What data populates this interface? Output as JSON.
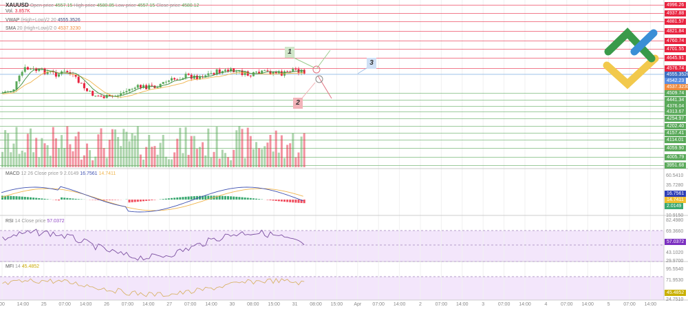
{
  "symbol": "XAUUSD",
  "ohlc": {
    "open_label": "Open price",
    "open": "4557.15",
    "high_label": "High price",
    "high": "4580.85",
    "low_label": "Low price",
    "low": "4557.15",
    "close_label": "Close price",
    "close": "4580.12"
  },
  "volume": {
    "label": "Vol.",
    "value": "3.857K"
  },
  "vwap": {
    "label": "VWAP",
    "params": "(High+Low)/2 20",
    "value": "4555.3526"
  },
  "sma": {
    "label": "SMA",
    "params": "20 (High+Low)/2 0",
    "value": "4537.3230"
  },
  "macd": {
    "label": "MACD",
    "params": "12 26 Close price 9",
    "hist": "2.0149",
    "macd": "16.7561",
    "signal": "14.7411",
    "axis": [
      "60.5410",
      "35.7280",
      "10.9150"
    ]
  },
  "rsi": {
    "label": "RSI",
    "params": "14 Close price",
    "value": "57.0372",
    "axis": [
      "82.4980",
      "69.3660",
      "43.1020",
      "29.9700"
    ]
  },
  "mfi": {
    "label": "MFI",
    "params": "14",
    "value": "45.4852",
    "axis": [
      "95.5540",
      "71.9530",
      "24.7510"
    ]
  },
  "price_levels": [
    {
      "v": "4996.26",
      "c": "#e8233f"
    },
    {
      "v": "4937.88",
      "c": "#e8233f"
    },
    {
      "v": "4881.57",
      "c": "#e8233f"
    },
    {
      "v": "4821.84",
      "c": "#e8233f"
    },
    {
      "v": "4760.74",
      "c": "#e8233f"
    },
    {
      "v": "4701.55",
      "c": "#e8233f"
    },
    {
      "v": "4645.91",
      "c": "#e8233f"
    },
    {
      "v": "4576.74",
      "c": "#e8233f"
    },
    {
      "v": "4555.3526",
      "c": "#3d6fc2"
    },
    {
      "v": "4542.23",
      "c": "#5b8ee0"
    },
    {
      "v": "4537.3230",
      "c": "#f08a3c"
    },
    {
      "v": "4509.74",
      "c": "#5aa95a"
    },
    {
      "v": "4441.34",
      "c": "#5aa95a"
    },
    {
      "v": "4376.04",
      "c": "#5aa95a"
    },
    {
      "v": "4313.67",
      "c": "#5aa95a"
    },
    {
      "v": "4254.97",
      "c": "#5aa95a"
    },
    {
      "v": "4202.40",
      "c": "#5aa95a"
    },
    {
      "v": "4157.41",
      "c": "#5aa95a"
    },
    {
      "v": "4114.01",
      "c": "#5aa95a"
    },
    {
      "v": "4059.90",
      "c": "#5aa95a"
    },
    {
      "v": "4005.79",
      "c": "#5aa95a"
    },
    {
      "v": "3951.68",
      "c": "#5aa95a"
    }
  ],
  "time_axis": [
    "00",
    "14:00",
    "25",
    "07:00",
    "14:00",
    "26",
    "07:00",
    "14:00",
    "27",
    "07:00",
    "14:00",
    "30",
    "08:00",
    "15:00",
    "31",
    "08:00",
    "15:00",
    "Apr",
    "07:00",
    "14:00",
    "2",
    "07:00",
    "14:00",
    "3",
    "07:00",
    "14:00",
    "4",
    "07:00",
    "14:00",
    "5",
    "07:00",
    "14:00"
  ],
  "annotations": [
    "1",
    "2",
    "3"
  ],
  "colors": {
    "up": "#5aa95a",
    "down": "#e8233f",
    "vwap": "#3d6fc2",
    "sma": "#f0b44c"
  }
}
